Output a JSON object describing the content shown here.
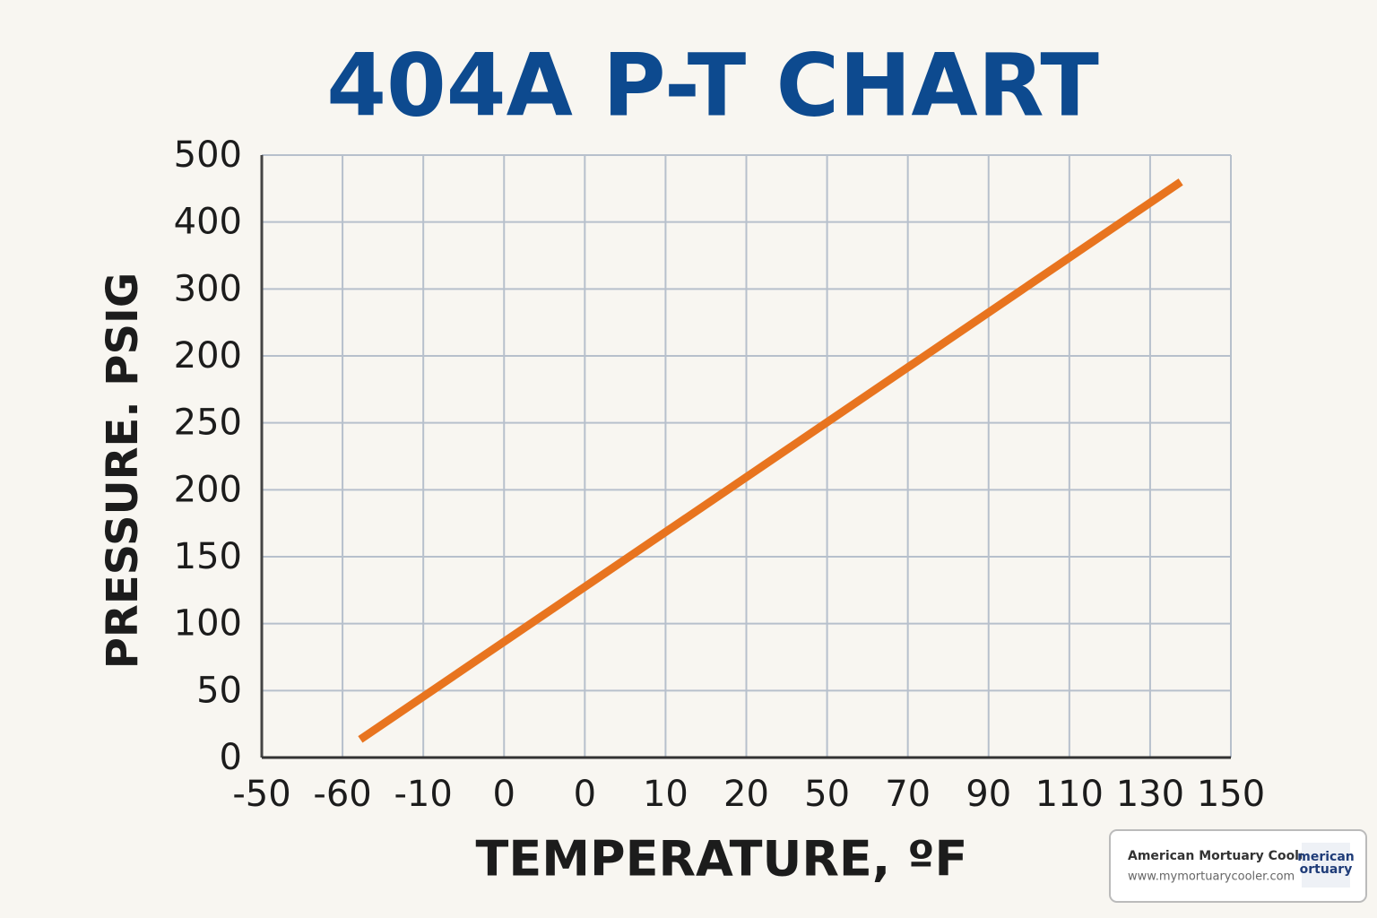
{
  "chart_data": {
    "type": "line",
    "title": "404A P-T CHART",
    "xlabel": "TEMPERATURE, ºF",
    "ylabel": "PRESSURE. PSIG",
    "xlim": [
      0,
      12
    ],
    "ylim": [
      0,
      9
    ],
    "xticks": [
      {
        "value": 0,
        "label": "-50"
      },
      {
        "value": 1,
        "label": "-60"
      },
      {
        "value": 2,
        "label": "-10"
      },
      {
        "value": 3,
        "label": "0"
      },
      {
        "value": 4,
        "label": "0"
      },
      {
        "value": 5,
        "label": "10"
      },
      {
        "value": 6,
        "label": "20"
      },
      {
        "value": 7,
        "label": "50"
      },
      {
        "value": 8,
        "label": "70"
      },
      {
        "value": 9,
        "label": "90"
      },
      {
        "value": 10,
        "label": "110"
      },
      {
        "value": 11,
        "label": "130"
      },
      {
        "value": 12,
        "label": "150"
      }
    ],
    "yticks": [
      {
        "value": 0,
        "label": "0"
      },
      {
        "value": 1,
        "label": "50"
      },
      {
        "value": 2,
        "label": "100"
      },
      {
        "value": 3,
        "label": "150"
      },
      {
        "value": 4,
        "label": "200"
      },
      {
        "value": 5,
        "label": "250"
      },
      {
        "value": 6,
        "label": "200"
      },
      {
        "value": 7,
        "label": "300"
      },
      {
        "value": 8,
        "label": "400"
      },
      {
        "value": 9,
        "label": "500"
      }
    ],
    "grid": true,
    "x": [
      1.22,
      11.38
    ],
    "series": [
      {
        "color": "#e8741f",
        "values": [
          0.27,
          8.6
        ]
      }
    ]
  },
  "watermark": {
    "name": "American Mortuary Coolers",
    "url": "www.mymortuarycooler.com",
    "logo": [
      "merican",
      "ortuary"
    ]
  }
}
